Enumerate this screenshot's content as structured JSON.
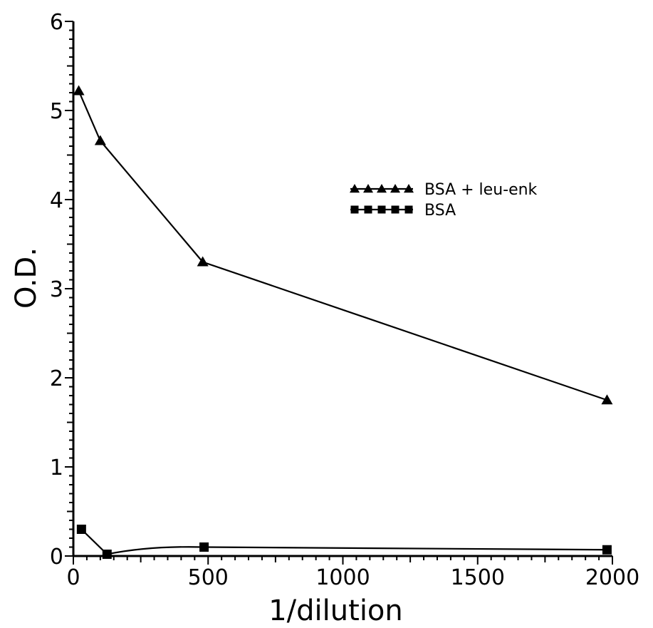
{
  "chart_data": {
    "type": "line",
    "xlabel": "1/dilution",
    "ylabel": "O.D.",
    "xlim": [
      0,
      2000
    ],
    "ylim": [
      0,
      6
    ],
    "x_ticks": [
      0,
      500,
      1000,
      1500,
      2000
    ],
    "y_ticks": [
      0,
      1,
      2,
      3,
      4,
      5,
      6
    ],
    "x_tick_labels": [
      "0",
      "500",
      "1000",
      "1500",
      "2000"
    ],
    "y_tick_labels": [
      "0",
      "1",
      "2",
      "3",
      "4",
      "5",
      "6"
    ],
    "grid": false,
    "legend_position": "top-right",
    "series": [
      {
        "name": "BSA + leu-enk",
        "marker": "triangle",
        "x": [
          20,
          100,
          480,
          1980
        ],
        "y": [
          5.22,
          4.66,
          3.3,
          1.75
        ]
      },
      {
        "name": "BSA",
        "marker": "square",
        "x": [
          30,
          125,
          485,
          1980
        ],
        "y": [
          0.3,
          0.02,
          0.1,
          0.07
        ]
      }
    ]
  }
}
